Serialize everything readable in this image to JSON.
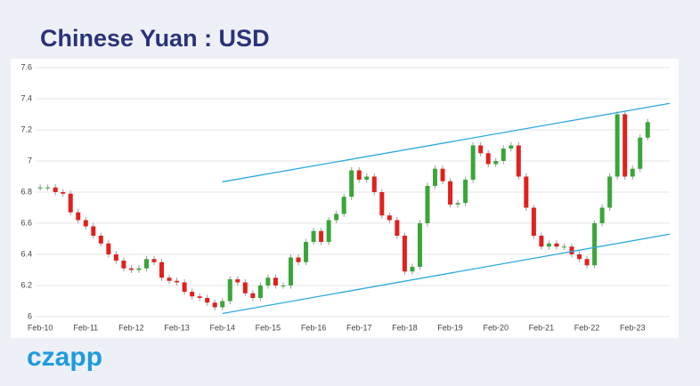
{
  "brand": "czapp",
  "chart_data": {
    "type": "candlestick",
    "title": "Chinese Yuan : USD",
    "categories": [
      "Feb-10",
      null,
      null,
      null,
      null,
      null,
      "Feb-11",
      null,
      null,
      null,
      null,
      null,
      "Feb-12",
      null,
      null,
      null,
      null,
      null,
      "Feb-13",
      null,
      null,
      null,
      null,
      null,
      "Feb-14",
      null,
      null,
      null,
      null,
      null,
      "Feb-15",
      null,
      null,
      null,
      null,
      null,
      "Feb-16",
      null,
      null,
      null,
      null,
      null,
      "Feb-17",
      null,
      null,
      null,
      null,
      null,
      "Feb-18",
      null,
      null,
      null,
      null,
      null,
      "Feb-19",
      null,
      null,
      null,
      null,
      null,
      "Feb-20",
      null,
      null,
      null,
      null,
      null,
      "Feb-21",
      null,
      null,
      null,
      null,
      null,
      "Feb-22",
      null,
      null,
      null,
      null,
      null,
      "Feb-23",
      null,
      null
    ],
    "open": [
      6.83,
      6.83,
      6.83,
      6.8,
      6.79,
      6.67,
      6.62,
      6.58,
      6.52,
      6.47,
      6.4,
      6.36,
      6.31,
      6.3,
      6.31,
      6.37,
      6.35,
      6.25,
      6.23,
      6.22,
      6.16,
      6.13,
      6.12,
      6.09,
      6.06,
      6.1,
      6.24,
      6.22,
      6.15,
      6.12,
      6.2,
      6.25,
      6.2,
      6.2,
      6.38,
      6.35,
      6.48,
      6.55,
      6.48,
      6.62,
      6.66,
      6.77,
      6.94,
      6.88,
      6.9,
      6.8,
      6.65,
      6.62,
      6.52,
      6.29,
      6.32,
      6.6,
      6.84,
      6.95,
      6.87,
      6.72,
      6.73,
      6.88,
      7.1,
      7.05,
      6.98,
      7.0,
      7.08,
      7.1,
      6.9,
      6.7,
      6.52,
      6.45,
      6.47,
      6.45,
      6.45,
      6.4,
      6.37,
      6.33,
      6.6,
      6.7,
      6.9,
      7.3,
      6.9,
      6.95,
      7.15
    ],
    "close": [
      6.83,
      6.83,
      6.8,
      6.79,
      6.67,
      6.62,
      6.58,
      6.52,
      6.47,
      6.4,
      6.36,
      6.31,
      6.3,
      6.31,
      6.37,
      6.35,
      6.25,
      6.23,
      6.22,
      6.16,
      6.13,
      6.12,
      6.09,
      6.06,
      6.1,
      6.24,
      6.22,
      6.15,
      6.12,
      6.2,
      6.25,
      6.2,
      6.2,
      6.38,
      6.35,
      6.48,
      6.55,
      6.48,
      6.62,
      6.66,
      6.77,
      6.94,
      6.88,
      6.9,
      6.8,
      6.65,
      6.62,
      6.52,
      6.29,
      6.32,
      6.6,
      6.84,
      6.95,
      6.87,
      6.72,
      6.73,
      6.88,
      7.1,
      7.05,
      6.98,
      7.0,
      7.08,
      7.1,
      6.9,
      6.7,
      6.52,
      6.45,
      6.47,
      6.45,
      6.45,
      6.4,
      6.37,
      6.33,
      6.6,
      6.7,
      6.9,
      7.3,
      6.9,
      6.95,
      7.15,
      7.25
    ],
    "high": [
      6.85,
      6.85,
      6.85,
      6.82,
      6.81,
      6.69,
      6.64,
      6.6,
      6.54,
      6.49,
      6.42,
      6.38,
      6.33,
      6.33,
      6.39,
      6.39,
      6.37,
      6.27,
      6.25,
      6.24,
      6.18,
      6.15,
      6.14,
      6.11,
      6.12,
      6.26,
      6.26,
      6.24,
      6.17,
      6.22,
      6.27,
      6.27,
      6.22,
      6.4,
      6.4,
      6.5,
      6.57,
      6.57,
      6.64,
      6.68,
      6.79,
      6.96,
      6.96,
      6.92,
      6.92,
      6.82,
      6.67,
      6.64,
      6.54,
      6.34,
      6.62,
      6.86,
      6.97,
      6.97,
      6.89,
      6.75,
      6.9,
      7.12,
      7.12,
      7.07,
      7.02,
      7.1,
      7.12,
      7.12,
      6.92,
      6.72,
      6.54,
      6.49,
      6.49,
      6.47,
      6.47,
      6.42,
      6.39,
      6.62,
      6.72,
      6.92,
      7.32,
      7.32,
      6.97,
      7.17,
      7.27
    ],
    "low": [
      6.81,
      6.81,
      6.78,
      6.77,
      6.65,
      6.6,
      6.56,
      6.5,
      6.45,
      6.38,
      6.34,
      6.29,
      6.28,
      6.28,
      6.29,
      6.33,
      6.23,
      6.21,
      6.2,
      6.14,
      6.11,
      6.1,
      6.07,
      6.04,
      6.04,
      6.08,
      6.2,
      6.13,
      6.1,
      6.1,
      6.18,
      6.18,
      6.18,
      6.18,
      6.33,
      6.33,
      6.46,
      6.46,
      6.46,
      6.6,
      6.64,
      6.75,
      6.86,
      6.86,
      6.78,
      6.63,
      6.6,
      6.5,
      6.27,
      6.27,
      6.3,
      6.58,
      6.82,
      6.85,
      6.7,
      6.7,
      6.71,
      6.86,
      7.03,
      6.96,
      6.96,
      6.98,
      7.06,
      6.88,
      6.68,
      6.5,
      6.43,
      6.43,
      6.43,
      6.43,
      6.38,
      6.35,
      6.31,
      6.31,
      6.58,
      6.68,
      6.88,
      6.88,
      6.88,
      6.93,
      7.13
    ],
    "up_color": "#3aa63a",
    "down_color": "#e0211d",
    "lines": [
      {
        "x": [
          24,
          82.9
        ],
        "y": [
          6.866,
          7.37
        ]
      },
      {
        "x": [
          24,
          82.9
        ],
        "y": [
          6.02,
          6.53
        ]
      }
    ],
    "line_color": "#29a9e0",
    "xlim": [
      -0.6,
      82.9
    ],
    "ylim": [
      6,
      7.6
    ],
    "yticks": [
      6,
      6.2,
      6.4,
      6.6,
      6.8,
      7,
      7.2,
      7.4,
      7.6
    ],
    "grid": true
  }
}
